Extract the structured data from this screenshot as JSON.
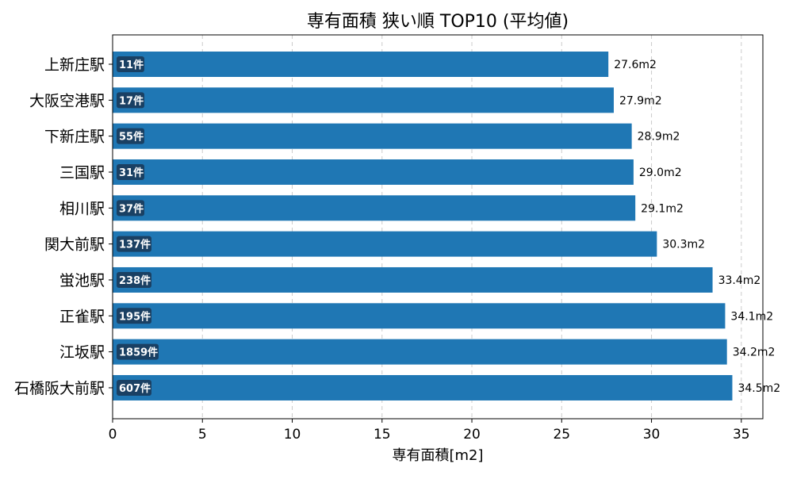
{
  "chart_data": {
    "type": "bar",
    "orientation": "horizontal",
    "title": "専有面積 狭い順 TOP10 (平均値)",
    "xlabel": "専有面積[m2]",
    "ylabel": "",
    "xlim": [
      0,
      36.2
    ],
    "xticks": [
      0,
      5,
      10,
      15,
      20,
      25,
      30,
      35
    ],
    "grid": "x-dashed",
    "categories": [
      "上新庄駅",
      "大阪空港駅",
      "下新庄駅",
      "三国駅",
      "相川駅",
      "関大前駅",
      "蛍池駅",
      "正雀駅",
      "江坂駅",
      "石橋阪大前駅"
    ],
    "values": [
      27.6,
      27.9,
      28.9,
      29.0,
      29.1,
      30.3,
      33.4,
      34.1,
      34.2,
      34.5
    ],
    "value_labels": [
      "27.6m2",
      "27.9m2",
      "28.9m2",
      "29.0m2",
      "29.1m2",
      "30.3m2",
      "33.4m2",
      "34.1m2",
      "34.2m2",
      "34.5m2"
    ],
    "count_labels": [
      "11件",
      "17件",
      "55件",
      "31件",
      "37件",
      "137件",
      "238件",
      "195件",
      "1859件",
      "607件"
    ],
    "colors": {
      "bar": "#1f77b4",
      "badge": "#1a3a5a",
      "grid": "#cccccc",
      "axis": "#000000"
    }
  }
}
